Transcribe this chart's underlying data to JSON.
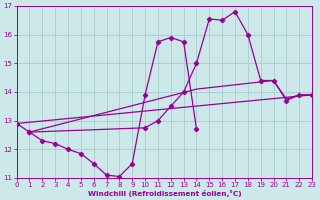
{
  "xlabel": "Windchill (Refroidissement éolien,°C)",
  "xlim": [
    0,
    23
  ],
  "ylim": [
    11,
    17
  ],
  "yticks": [
    11,
    12,
    13,
    14,
    15,
    16,
    17
  ],
  "xticks": [
    0,
    1,
    2,
    3,
    4,
    5,
    6,
    7,
    8,
    9,
    10,
    11,
    12,
    13,
    14,
    15,
    16,
    17,
    18,
    19,
    20,
    21,
    22,
    23
  ],
  "background_color": "#cce8e8",
  "grid_color": "#aacccc",
  "line_color": "#990099",
  "line1_x": [
    0,
    1,
    2,
    3,
    4,
    5,
    6,
    7,
    8,
    9,
    10,
    11,
    12,
    13,
    14
  ],
  "line1_y": [
    12.9,
    12.6,
    12.3,
    12.2,
    12.0,
    11.85,
    11.5,
    11.1,
    11.05,
    11.5,
    13.9,
    15.75,
    15.9,
    15.75,
    12.7
  ],
  "line2_x": [
    0,
    23
  ],
  "line2_y": [
    12.9,
    13.9
  ],
  "line3_x": [
    1,
    14,
    20,
    21,
    22,
    23
  ],
  "line3_y": [
    12.6,
    14.1,
    14.4,
    13.75,
    13.9,
    13.9
  ],
  "line4_x": [
    1,
    10,
    11,
    12,
    13,
    14,
    15,
    16,
    17,
    18,
    19,
    20,
    21,
    22,
    23
  ],
  "line4_y": [
    12.6,
    12.75,
    13.0,
    13.5,
    14.0,
    15.0,
    16.55,
    16.5,
    16.8,
    16.0,
    14.4,
    14.4,
    13.7,
    13.9,
    13.9
  ]
}
